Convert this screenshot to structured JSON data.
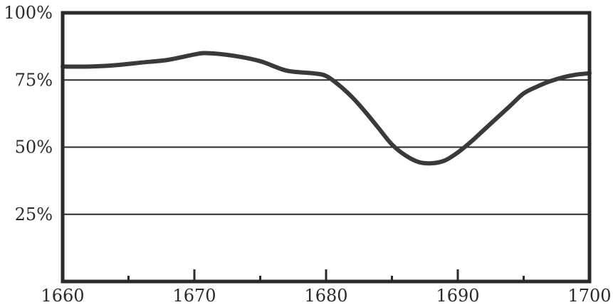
{
  "chart_data": {
    "type": "line",
    "title": "",
    "xlabel": "",
    "ylabel": "",
    "xlim": [
      1660,
      1700
    ],
    "ylim": [
      0,
      100
    ],
    "x_ticks": [
      1660,
      1670,
      1680,
      1690,
      1700
    ],
    "x_tick_labels": [
      "1660",
      "1670",
      "1680",
      "1690",
      "1700"
    ],
    "x_minor_ticks": [
      1665,
      1675,
      1685,
      1695
    ],
    "y_ticks": [
      25,
      50,
      75,
      100
    ],
    "y_tick_labels": [
      "25%",
      "50%",
      "75%",
      "100%"
    ],
    "horizontal_gridlines": [
      25,
      50,
      75
    ],
    "grid": "horizontal",
    "line_color": "#3a3a3a",
    "series": [
      {
        "x": [
          1660,
          1662,
          1664,
          1666,
          1668,
          1670,
          1671,
          1673,
          1675,
          1677,
          1679,
          1680,
          1681,
          1682,
          1683,
          1684,
          1685,
          1686,
          1687,
          1688,
          1689,
          1690,
          1691,
          1692,
          1693,
          1694,
          1695,
          1696,
          1697,
          1698,
          1699,
          1700
        ],
        "y": [
          80,
          80,
          80.5,
          81.5,
          82.5,
          84.5,
          85,
          84,
          82,
          78.5,
          77.5,
          76.5,
          73,
          68.5,
          63,
          57,
          51,
          47,
          44.5,
          44,
          45,
          48,
          52,
          56.5,
          61,
          65.5,
          70,
          72.5,
          74.5,
          76,
          77,
          77.5
        ]
      }
    ]
  }
}
